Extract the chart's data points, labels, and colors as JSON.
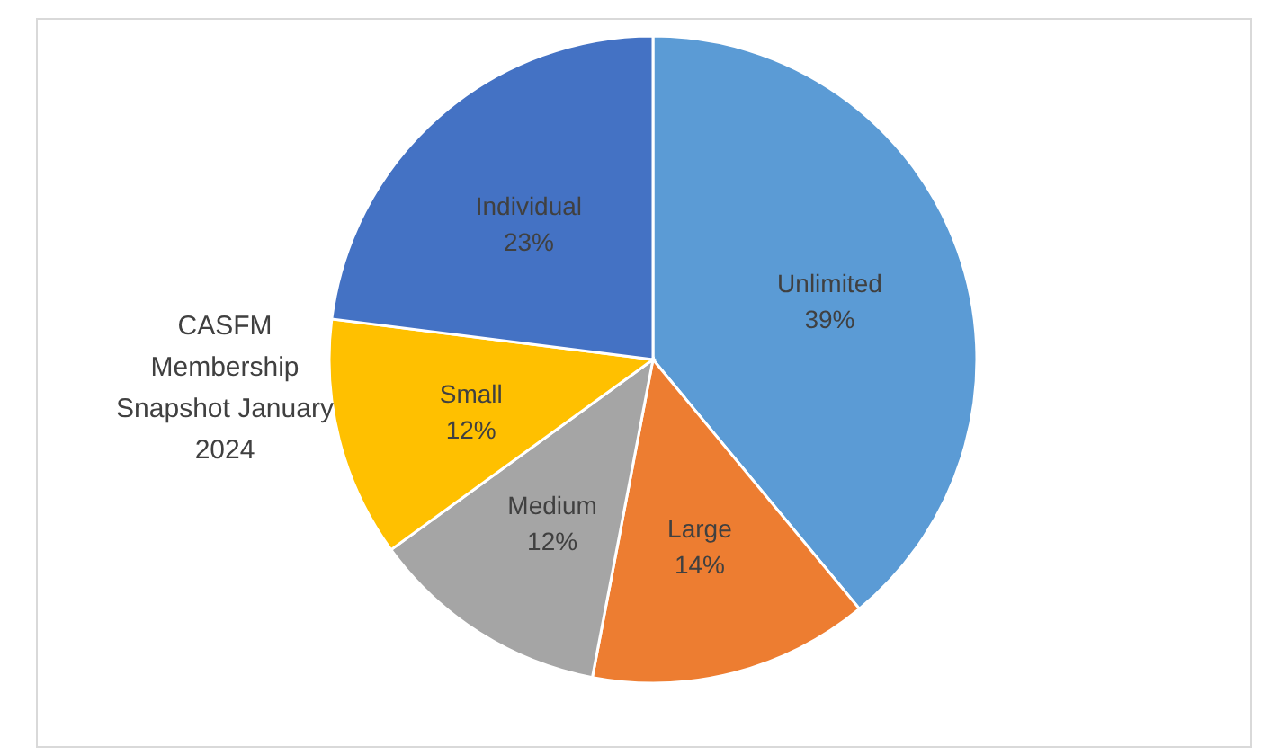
{
  "chart_data": {
    "type": "pie",
    "title": "CASFM Membership Snapshot January 2024",
    "categories": [
      "Unlimited",
      "Large",
      "Medium",
      "Small",
      "Individual"
    ],
    "values": [
      39,
      14,
      12,
      12,
      23
    ],
    "value_labels": [
      "39%",
      "14%",
      "12%",
      "12%",
      "23%"
    ],
    "colors": [
      "#5b9bd5",
      "#ed7d31",
      "#a5a5a5",
      "#ffc000",
      "#4472c4"
    ]
  }
}
